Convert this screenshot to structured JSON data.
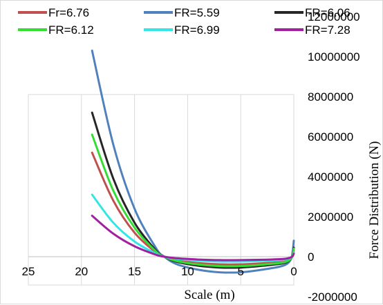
{
  "chart_data": {
    "type": "line",
    "title": "",
    "xlabel": "Scale (m)",
    "ylabel": "Force Distribution (N)",
    "x_axis": {
      "min": 0,
      "max": 25,
      "reversed": true,
      "ticks": [
        25,
        20,
        15,
        10,
        5,
        0
      ],
      "tick_labels": [
        "25",
        "20",
        "15",
        "10",
        "5",
        "0"
      ]
    },
    "y_axis": {
      "position": "right",
      "min": -2000000,
      "max": 12000000,
      "ticks": [
        -2000000,
        0,
        2000000,
        4000000,
        6000000,
        8000000,
        10000000,
        12000000
      ],
      "tick_labels": [
        "-2000000",
        "0",
        "2000000",
        "4000000",
        "6000000",
        "8000000",
        "10000000",
        "12000000"
      ]
    },
    "grid": {
      "vertical": true,
      "horizontal": false
    },
    "legend_position": "top",
    "series": [
      {
        "name": "Fr=6.76",
        "color": "#c0504d",
        "x": [
          19,
          17,
          15,
          13,
          12.2,
          11,
          9,
          7,
          5,
          3,
          1,
          0.3,
          0.1,
          0
        ],
        "y": [
          5200000,
          2800000,
          1200000,
          220000,
          0,
          -180000,
          -320000,
          -380000,
          -380000,
          -330000,
          -250000,
          -100000,
          100000,
          300000
        ]
      },
      {
        "name": "FR=5.59",
        "color": "#4f81bd",
        "x": [
          19,
          17,
          15,
          13,
          12.2,
          11,
          9,
          7,
          5,
          3,
          1,
          0.3,
          0.1,
          0
        ],
        "y": [
          10300000,
          5600000,
          2400000,
          450000,
          0,
          -380000,
          -650000,
          -780000,
          -780000,
          -650000,
          -450000,
          -150000,
          300000,
          800000
        ]
      },
      {
        "name": "FR=6.06",
        "color": "#262626",
        "x": [
          19,
          17,
          15,
          13,
          12.2,
          11,
          9,
          7,
          5,
          3,
          1,
          0.3,
          0.1,
          0
        ],
        "y": [
          7200000,
          3900000,
          1700000,
          320000,
          0,
          -260000,
          -450000,
          -540000,
          -540000,
          -460000,
          -330000,
          -120000,
          150000,
          450000
        ]
      },
      {
        "name": "FR=6.12",
        "color": "#33dd33",
        "x": [
          19,
          17,
          15,
          13,
          12.2,
          11,
          9,
          7,
          5,
          3,
          1,
          0.3,
          0.1,
          0
        ],
        "y": [
          6100000,
          3300000,
          1450000,
          270000,
          0,
          -220000,
          -390000,
          -470000,
          -470000,
          -400000,
          -290000,
          -110000,
          130000,
          400000
        ]
      },
      {
        "name": "FR=6.99",
        "color": "#33e6e6",
        "x": [
          19,
          17,
          15,
          13,
          12.2,
          11,
          9,
          7,
          5,
          3,
          1,
          0.3,
          0.1,
          0
        ],
        "y": [
          3100000,
          1700000,
          760000,
          150000,
          0,
          -110000,
          -200000,
          -240000,
          -240000,
          -210000,
          -160000,
          -60000,
          60000,
          200000
        ]
      },
      {
        "name": "FR=7.28",
        "color": "#a020a0",
        "x": [
          19,
          17,
          15,
          13,
          12.2,
          11,
          9,
          7,
          5,
          3,
          1,
          0.3,
          0.1,
          0
        ],
        "y": [
          2050000,
          1150000,
          520000,
          100000,
          0,
          -80000,
          -140000,
          -170000,
          -170000,
          -150000,
          -110000,
          -40000,
          40000,
          150000
        ]
      }
    ]
  }
}
